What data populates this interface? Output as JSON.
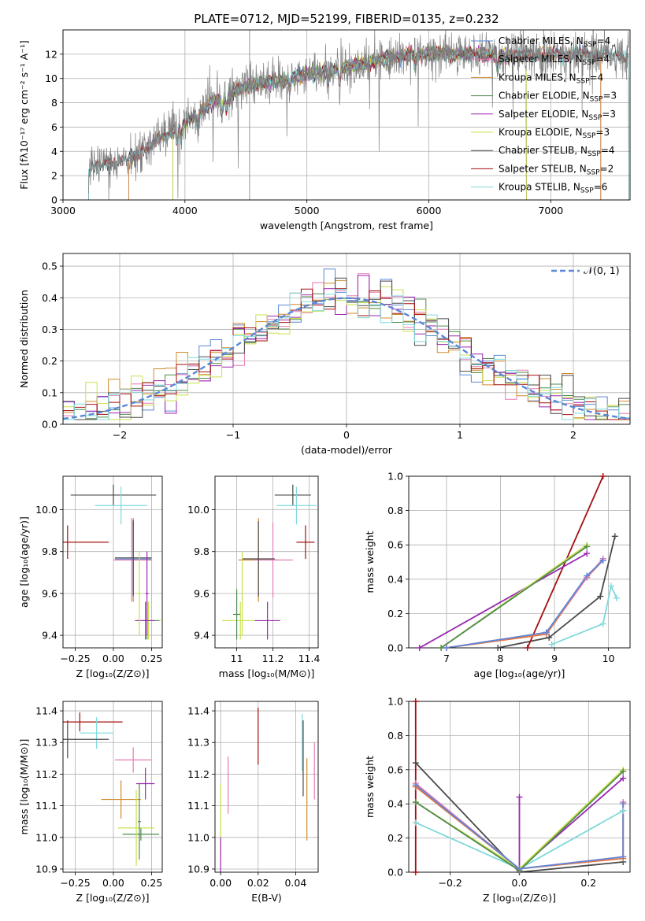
{
  "figure": {
    "title": "PLATE=0712, MJD=52199, FIBERID=0135, z=0.232"
  },
  "colors": {
    "Chabrier MILES": "#5b87d6",
    "Salpeter MILES": "#e87ab6",
    "Kroupa MILES": "#d08a2c",
    "Chabrier ELODIE": "#4f8a4f",
    "Salpeter ELODIE": "#9b27b0",
    "Kroupa ELODIE": "#c9e14a",
    "Chabrier STELIB": "#4a4a4a",
    "Salpeter STELIB": "#a50f0f",
    "Kroupa STELIB": "#7fd9dc",
    "data": "#808080",
    "normal": "#5b87d6",
    "orange": "#e8743b"
  },
  "chart_data": [
    {
      "id": "spectrum",
      "type": "line",
      "xlabel": "wavelength [Angstrom, rest frame]",
      "ylabel": "Flux [fλ10⁻¹⁷ erg cm⁻² s⁻¹ A⁻¹]",
      "xlim": [
        3000,
        7650
      ],
      "ylim": [
        0,
        14
      ],
      "xticks": [
        3000,
        4000,
        5000,
        6000,
        7000
      ],
      "yticks": [
        0,
        2,
        4,
        6,
        8,
        10,
        12
      ],
      "legend_position": "top-right",
      "continuum": {
        "x": [
          3210,
          3300,
          3400,
          3500,
          3600,
          3700,
          3800,
          3900,
          4000,
          4100,
          4200,
          4300,
          4400,
          4500,
          4600,
          4800,
          5000,
          5200,
          5400,
          5600,
          5800,
          6000,
          6200,
          6400,
          6600,
          6800,
          7000,
          7200,
          7400,
          7640
        ],
        "y": [
          2.4,
          2.8,
          3.0,
          3.2,
          3.7,
          4.3,
          5.1,
          5.7,
          6.3,
          7.0,
          7.8,
          8.4,
          8.9,
          9.3,
          9.6,
          9.9,
          10.3,
          10.7,
          11.1,
          11.5,
          11.9,
          12.1,
          12.1,
          12.0,
          11.9,
          11.9,
          12.0,
          12.0,
          12.0,
          12.0
        ]
      },
      "legend": [
        {
          "label": "Chabrier MILES, N",
          "sub": "SSP",
          "tail": "=4"
        },
        {
          "label": "Salpeter MILES, N",
          "sub": "SSP",
          "tail": "=4"
        },
        {
          "label": "Kroupa MILES, N",
          "sub": "SSP",
          "tail": "=4"
        },
        {
          "label": "Chabrier ELODIE, N",
          "sub": "SSP",
          "tail": "=3"
        },
        {
          "label": "Salpeter ELODIE, N",
          "sub": "SSP",
          "tail": "=3"
        },
        {
          "label": "Kroupa ELODIE, N",
          "sub": "SSP",
          "tail": "=3"
        },
        {
          "label": "Chabrier STELIB, N",
          "sub": "SSP",
          "tail": "=4"
        },
        {
          "label": "Salpeter STELIB, N",
          "sub": "SSP",
          "tail": "=2"
        },
        {
          "label": "Kroupa STELIB, N",
          "sub": "SSP",
          "tail": "=6"
        }
      ],
      "model_ranges": [
        {
          "name": "Chabrier MILES",
          "x": [
            3540,
            7410
          ]
        },
        {
          "name": "Salpeter MILES",
          "x": [
            3540,
            7410
          ]
        },
        {
          "name": "Kroupa MILES",
          "x": [
            3540,
            7410
          ]
        },
        {
          "name": "Chabrier ELODIE",
          "x": [
            3900,
            6800
          ]
        },
        {
          "name": "Salpeter ELODIE",
          "x": [
            3900,
            6800
          ]
        },
        {
          "name": "Kroupa ELODIE",
          "x": [
            3900,
            6800
          ]
        },
        {
          "name": "Chabrier STELIB",
          "x": [
            3210,
            7640
          ]
        },
        {
          "name": "Salpeter STELIB",
          "x": [
            3210,
            7640
          ]
        },
        {
          "name": "Kroupa STELIB",
          "x": [
            3210,
            7640
          ]
        }
      ]
    },
    {
      "id": "residuals",
      "type": "histogram",
      "xlabel": "(data-model)/error",
      "ylabel": "Normed distribution",
      "xlim": [
        -2.5,
        2.5
      ],
      "ylim": [
        0,
        0.54
      ],
      "xticks": [
        -2,
        -1,
        0,
        1,
        2
      ],
      "yticks": [
        0.0,
        0.1,
        0.2,
        0.3,
        0.4,
        0.5
      ],
      "legend": {
        "label": "𝒩(0, 1)",
        "position": "top-right"
      }
    },
    {
      "id": "age_vs_Z",
      "type": "errorbar",
      "xlabel": "Z [log₁₀(Z/Z⊙)]",
      "ylabel": "age  [log₁₀(age/yr)]",
      "xlim": [
        -0.33,
        0.32
      ],
      "ylim": [
        9.34,
        10.16
      ],
      "xticks": [
        -0.25,
        0.0,
        0.25
      ],
      "xtick_labels": [
        "−0.25",
        "0.00",
        "0.25"
      ],
      "yticks": [
        9.4,
        9.6,
        9.8,
        10.0
      ],
      "points": [
        {
          "name": "Chabrier STELIB",
          "x": 0.0,
          "xerr": 0.28,
          "y": 10.07,
          "yerr": 0.05
        },
        {
          "name": "Kroupa STELIB",
          "x": 0.05,
          "xerr": 0.17,
          "y": 10.02,
          "yerr": 0.09
        },
        {
          "name": "Salpeter STELIB",
          "x": -0.3,
          "xerr": 0.27,
          "y": 9.845,
          "yerr": 0.08
        },
        {
          "name": "Kroupa MILES",
          "x": 0.13,
          "xerr": 0.12,
          "y": 9.76,
          "yerr": 0.2
        },
        {
          "name": "Salpeter MILES",
          "x": 0.12,
          "xerr": 0.12,
          "y": 9.76,
          "yerr": 0.2
        },
        {
          "name": "Chabrier MILES",
          "x": 0.13,
          "xerr": 0.12,
          "y": 9.765,
          "yerr": 0.18
        },
        {
          "name": "Chabrier STELIB",
          "x": 0.13,
          "xerr": 0.12,
          "y": 9.77,
          "yerr": 0.18
        },
        {
          "name": "Kroupa ELODIE",
          "x": 0.23,
          "xerr": 0.08,
          "y": 9.47,
          "yerr": 0.09
        },
        {
          "name": "Chabrier ELODIE",
          "x": 0.22,
          "xerr": 0.08,
          "y": 9.47,
          "yerr": 0.09
        },
        {
          "name": "Salpeter ELODIE",
          "x": 0.21,
          "xerr": 0.06,
          "y": 9.47,
          "yerr": 0.09
        },
        {
          "name": "Kroupa ELODIE",
          "x": 0.17,
          "xerr": 0.01,
          "y": 9.6,
          "yerr": 0.2
        },
        {
          "name": "Salpeter ELODIE",
          "x": 0.22,
          "xerr": 0.01,
          "y": 9.6,
          "yerr": 0.2
        }
      ]
    },
    {
      "id": "age_vs_mass",
      "type": "errorbar",
      "xlabel": "mass [log₁₀(M/M⊙)]",
      "xlim": [
        10.88,
        11.45
      ],
      "ylim": [
        9.34,
        10.16
      ],
      "xticks": [
        11.0,
        11.2,
        11.4
      ],
      "yticks": [
        9.4,
        9.6,
        9.8,
        10.0
      ],
      "points": [
        {
          "name": "Chabrier STELIB",
          "x": 11.31,
          "xerr": 0.1,
          "y": 10.07,
          "yerr": 0.05
        },
        {
          "name": "Kroupa STELIB",
          "x": 11.33,
          "xerr": 0.11,
          "y": 10.02,
          "yerr": 0.09
        },
        {
          "name": "Salpeter STELIB",
          "x": 11.38,
          "xerr": 0.05,
          "y": 9.845,
          "yerr": 0.08
        },
        {
          "name": "Kroupa MILES",
          "x": 11.12,
          "xerr": 0.11,
          "y": 9.76,
          "yerr": 0.2
        },
        {
          "name": "Salpeter MILES",
          "x": 11.2,
          "xerr": 0.11,
          "y": 9.76,
          "yerr": 0.18
        },
        {
          "name": "Chabrier STELIB",
          "x": 11.12,
          "xerr": 0.09,
          "y": 9.765,
          "yerr": 0.18
        },
        {
          "name": "Kroupa ELODIE",
          "x": 11.02,
          "xerr": 0.1,
          "y": 9.47,
          "yerr": 0.09
        },
        {
          "name": "Salpeter ELODIE",
          "x": 11.17,
          "xerr": 0.07,
          "y": 9.47,
          "yerr": 0.09
        },
        {
          "name": "Chabrier ELODIE",
          "x": 11.0,
          "xerr": 0.02,
          "y": 9.5,
          "yerr": 0.12
        },
        {
          "name": "Kroupa ELODIE",
          "x": 11.03,
          "xerr": 0.005,
          "y": 9.6,
          "yerr": 0.2
        }
      ]
    },
    {
      "id": "weight_vs_age",
      "type": "line",
      "xlabel": "age  [log₁₀(age/yr)]",
      "ylabel": "mass weight",
      "xlim": [
        6.3,
        10.4
      ],
      "ylim": [
        0,
        1.0
      ],
      "xticks": [
        7,
        8,
        9,
        10
      ],
      "yticks": [
        0.0,
        0.2,
        0.4,
        0.6,
        0.8,
        1.0
      ],
      "series": [
        {
          "name": "Chabrier STELIB",
          "x": [
            7.95,
            8.9,
            9.85,
            10.12
          ],
          "y": [
            0.0,
            0.06,
            0.3,
            0.65
          ]
        },
        {
          "name": "Kroupa STELIB",
          "x": [
            8.95,
            9.9,
            10.05,
            10.15
          ],
          "y": [
            0.02,
            0.14,
            0.36,
            0.29
          ]
        },
        {
          "name": "Salpeter STELIB",
          "x": [
            8.5,
            9.9
          ],
          "y": [
            0.0,
            1.0
          ]
        },
        {
          "name": "Salpeter ELODIE",
          "x": [
            6.5,
            9.6
          ],
          "y": [
            0.0,
            0.55
          ]
        },
        {
          "name": "Kroupa ELODIE",
          "x": [
            6.9,
            9.6
          ],
          "y": [
            0.0,
            0.6
          ]
        },
        {
          "name": "Chabrier ELODIE",
          "x": [
            6.9,
            9.6
          ],
          "y": [
            0.0,
            0.59
          ]
        },
        {
          "name": "Kroupa MILES",
          "x": [
            7.0,
            8.85,
            9.6,
            9.9
          ],
          "y": [
            0.0,
            0.08,
            0.41,
            0.51
          ]
        },
        {
          "name": "Salpeter MILES",
          "x": [
            7.0,
            8.85,
            9.6,
            9.9
          ],
          "y": [
            0.0,
            0.09,
            0.41,
            0.52
          ]
        },
        {
          "name": "Chabrier MILES",
          "x": [
            7.0,
            8.85,
            9.6,
            9.9
          ],
          "y": [
            0.0,
            0.09,
            0.42,
            0.51
          ]
        }
      ]
    },
    {
      "id": "mass_vs_Z",
      "type": "errorbar",
      "xlabel": "Z [log₁₀(Z/Z⊙)]",
      "ylabel": "mass [log₁₀(M/M⊙)]",
      "xlim": [
        -0.33,
        0.32
      ],
      "ylim": [
        10.89,
        11.43
      ],
      "xticks": [
        -0.25,
        0.0,
        0.25
      ],
      "xtick_labels": [
        "−0.25",
        "0.00",
        "0.25"
      ],
      "yticks": [
        10.9,
        11.0,
        11.1,
        11.2,
        11.3,
        11.4
      ],
      "points": [
        {
          "name": "Salpeter STELIB",
          "x": -0.22,
          "xerr": 0.28,
          "y": 11.365,
          "yerr": 0.03
        },
        {
          "name": "Kroupa STELIB",
          "x": -0.11,
          "xerr": 0.11,
          "y": 11.33,
          "yerr": 0.05
        },
        {
          "name": "Chabrier STELIB",
          "x": -0.3,
          "xerr": 0.27,
          "y": 11.31,
          "yerr": 0.06
        },
        {
          "name": "Salpeter MILES",
          "x": 0.13,
          "xerr": 0.12,
          "y": 11.245,
          "yerr": 0.04
        },
        {
          "name": "Salpeter ELODIE",
          "x": 0.21,
          "xerr": 0.06,
          "y": 11.17,
          "yerr": 0.05
        },
        {
          "name": "Kroupa MILES",
          "x": 0.05,
          "xerr": 0.13,
          "y": 11.12,
          "yerr": 0.06
        },
        {
          "name": "Chabrier ELODIE",
          "x": 0.18,
          "xerr": 0.12,
          "y": 11.01,
          "yerr": 0.02
        },
        {
          "name": "Kroupa ELODIE",
          "x": 0.15,
          "xerr": 0.12,
          "y": 11.03,
          "yerr": 0.12
        },
        {
          "name": "Chabrier ELODIE",
          "x": 0.17,
          "xerr": 0.01,
          "y": 11.05,
          "yerr": 0.12
        }
      ]
    },
    {
      "id": "mass_vs_ebv",
      "type": "errorbar",
      "xlabel": "E(B-V)",
      "xlim": [
        -0.003,
        0.052
      ],
      "ylim": [
        10.89,
        11.43
      ],
      "xticks": [
        0.0,
        0.02,
        0.04
      ],
      "xtick_labels": [
        "0.00",
        "0.02",
        "0.04"
      ],
      "yticks": [
        10.9,
        11.0,
        11.1,
        11.2,
        11.3,
        11.4
      ],
      "points": [
        {
          "name": "Salpeter STELIB",
          "x": 0.02,
          "y": 11.32,
          "yerr": 0.09
        },
        {
          "name": "Kroupa ELODIE",
          "x": 0.0,
          "y": 11.05,
          "yerr": 0.12
        },
        {
          "name": "Salpeter ELODIE",
          "x": 0.0,
          "y": 10.94,
          "yerr": 0.06
        },
        {
          "name": "Salpeter MILES",
          "x": 0.004,
          "y": 11.165,
          "yerr": 0.09
        },
        {
          "name": "Kroupa STELIB",
          "x": 0.0435,
          "y": 11.3,
          "yerr": 0.09
        },
        {
          "name": "Chabrier STELIB",
          "x": 0.044,
          "y": 11.25,
          "yerr": 0.12
        },
        {
          "name": "Kroupa MILES",
          "x": 0.046,
          "y": 11.12,
          "yerr": 0.13
        },
        {
          "name": "Salpeter MILES",
          "x": 0.05,
          "y": 11.21,
          "yerr": 0.09
        }
      ]
    },
    {
      "id": "weight_vs_Z",
      "type": "line",
      "xlabel": "Z [log₁₀(Z/Z⊙)]",
      "ylabel": "mass weight",
      "xlim": [
        -0.32,
        0.32
      ],
      "ylim": [
        0,
        1.0
      ],
      "xticks": [
        -0.2,
        0.0,
        0.2
      ],
      "xtick_labels": [
        "−0.2",
        "0.0",
        "0.2"
      ],
      "yticks": [
        0.0,
        0.2,
        0.4,
        0.6,
        0.8,
        1.0
      ],
      "series": [
        {
          "name": "Salpeter STELIB",
          "x": [
            -0.3,
            -0.3
          ],
          "y": [
            0.0,
            1.0
          ]
        },
        {
          "name": "Chabrier STELIB",
          "x": [
            -0.3,
            0.0,
            0.3
          ],
          "y": [
            0.64,
            0.0,
            0.06
          ]
        },
        {
          "name": "Kroupa STELIB",
          "x": [
            -0.3,
            0.0,
            0.3,
            0.3
          ],
          "y": [
            0.29,
            0.02,
            0.36,
            0.36
          ]
        },
        {
          "name": "Salpeter ELODIE",
          "x": [
            0.0,
            0.0,
            0.3
          ],
          "y": [
            0.44,
            0.02,
            0.55
          ]
        },
        {
          "name": "Kroupa ELODIE",
          "x": [
            -0.3,
            0.0,
            0.3
          ],
          "y": [
            0.41,
            0.02,
            0.6
          ]
        },
        {
          "name": "Chabrier ELODIE",
          "x": [
            -0.3,
            0.0,
            0.3
          ],
          "y": [
            0.41,
            0.01,
            0.59
          ]
        },
        {
          "name": "Kroupa MILES",
          "x": [
            -0.3,
            0.0,
            0.3,
            0.3
          ],
          "y": [
            0.5,
            0.02,
            0.08,
            0.41
          ]
        },
        {
          "name": "Salpeter MILES",
          "x": [
            -0.3,
            0.0,
            0.3,
            0.3
          ],
          "y": [
            0.52,
            0.02,
            0.09,
            0.41
          ]
        },
        {
          "name": "Chabrier MILES",
          "x": [
            -0.3,
            0.0,
            0.3,
            0.3
          ],
          "y": [
            0.51,
            0.02,
            0.09,
            0.4
          ]
        }
      ]
    }
  ]
}
